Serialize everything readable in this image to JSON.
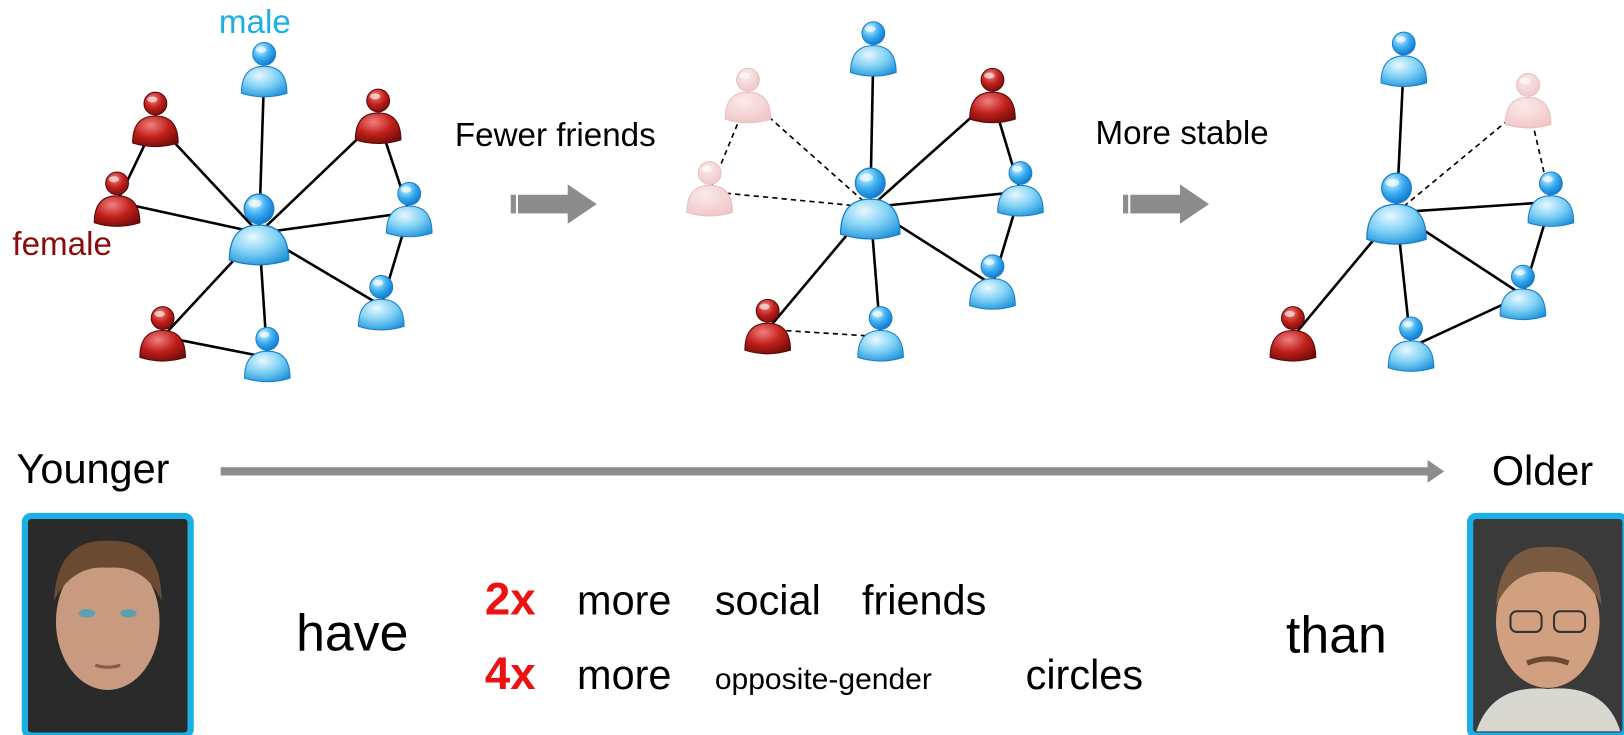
{
  "labels": {
    "male": "male",
    "female": "female"
  },
  "transitions": [
    "Fewer friends",
    "More stable"
  ],
  "timeline": {
    "start": "Younger",
    "end": "Older"
  },
  "comparison": {
    "verb": "have",
    "conjunction": "than",
    "rows": [
      {
        "factor": "2x",
        "parts": [
          "more",
          "social",
          "friends"
        ]
      },
      {
        "factor": "4x",
        "parts": [
          "more",
          "opposite-gender",
          "circles"
        ]
      }
    ]
  }
}
